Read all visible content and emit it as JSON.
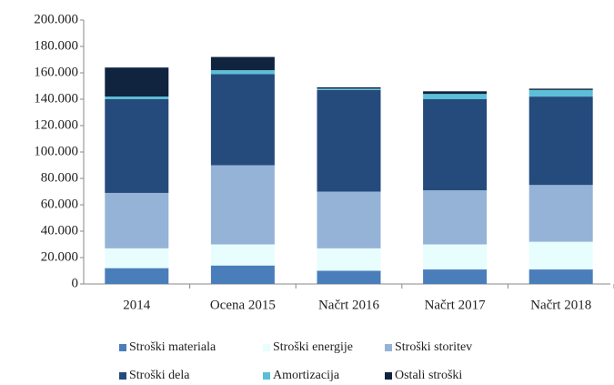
{
  "chart_data": {
    "type": "stacked-bar",
    "categories": [
      "2014",
      "Ocena 2015",
      "Načrt  2016",
      "Načrt 2017",
      "Načrt 2018"
    ],
    "series": [
      {
        "name": "Stroški materiala",
        "color": "#4a7ebb",
        "values": [
          12000,
          14000,
          10000,
          11000,
          11000
        ]
      },
      {
        "name": "Stroški energije",
        "color": "#e8fdfd",
        "values": [
          15000,
          16000,
          17000,
          19000,
          21000
        ]
      },
      {
        "name": "Stroški storitev",
        "color": "#95b3d7",
        "values": [
          42000,
          60000,
          43000,
          41000,
          43000
        ]
      },
      {
        "name": "Stroški dela",
        "color": "#254a7c",
        "values": [
          71000,
          69000,
          77000,
          69000,
          67000
        ]
      },
      {
        "name": "Amortizacija",
        "color": "#5bbfd8",
        "values": [
          2000,
          3000,
          1000,
          4000,
          5000
        ]
      },
      {
        "name": "Ostali stroški",
        "color": "#10243f",
        "values": [
          22000,
          10000,
          1000,
          2000,
          1000
        ]
      }
    ],
    "ylim": [
      0,
      200000
    ],
    "yticks": [
      0,
      {
        "value": 20000,
        "label": "20.000"
      },
      {
        "value": 40000,
        "label": "40.000"
      },
      {
        "value": 60000,
        "label": "60.000"
      },
      {
        "value": 80000,
        "label": "80.000"
      },
      {
        "value": 100000,
        "label": "100.000"
      },
      {
        "value": 120000,
        "label": "120.000"
      },
      {
        "value": 140000,
        "label": "140.000"
      },
      {
        "value": 160000,
        "label": "160.000"
      },
      {
        "value": 180000,
        "label": "180.000"
      },
      {
        "value": 200000,
        "label": "200.000"
      }
    ],
    "legend": "bottom"
  }
}
